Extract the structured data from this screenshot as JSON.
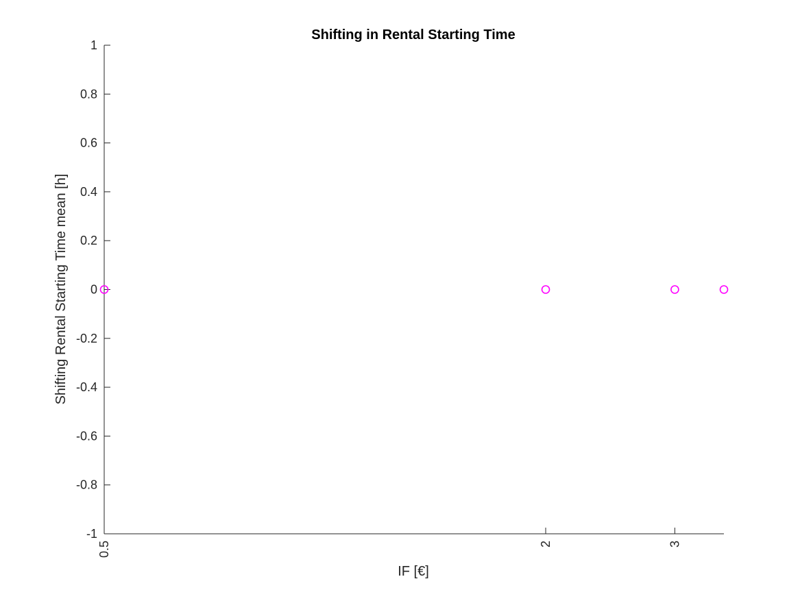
{
  "chart_data": {
    "type": "scatter",
    "title": "Shifting in Rental Starting Time",
    "xlabel": "IF [€]",
    "ylabel": "Shifting Rental Starting Time mean [h]",
    "x_scale": "log",
    "xlim": [
      0.5,
      3.5
    ],
    "ylim": [
      -1,
      1
    ],
    "xticks": [
      0.5,
      2,
      3
    ],
    "xtick_labels": [
      "0.5",
      "2",
      "3"
    ],
    "yticks": [
      -1,
      -0.8,
      -0.6,
      -0.4,
      -0.2,
      0,
      0.2,
      0.4,
      0.6,
      0.8,
      1
    ],
    "ytick_labels": [
      "-1",
      "-0.8",
      "-0.6",
      "-0.4",
      "-0.2",
      "0",
      "0.2",
      "0.4",
      "0.6",
      "0.8",
      "1"
    ],
    "grid": false,
    "series": [
      {
        "marker": "circle",
        "color": "#ff00ff",
        "points": [
          {
            "x": 0.5,
            "y": 0
          },
          {
            "x": 2,
            "y": 0
          },
          {
            "x": 3,
            "y": 0
          },
          {
            "x": 3.5,
            "y": 0
          }
        ]
      }
    ]
  }
}
